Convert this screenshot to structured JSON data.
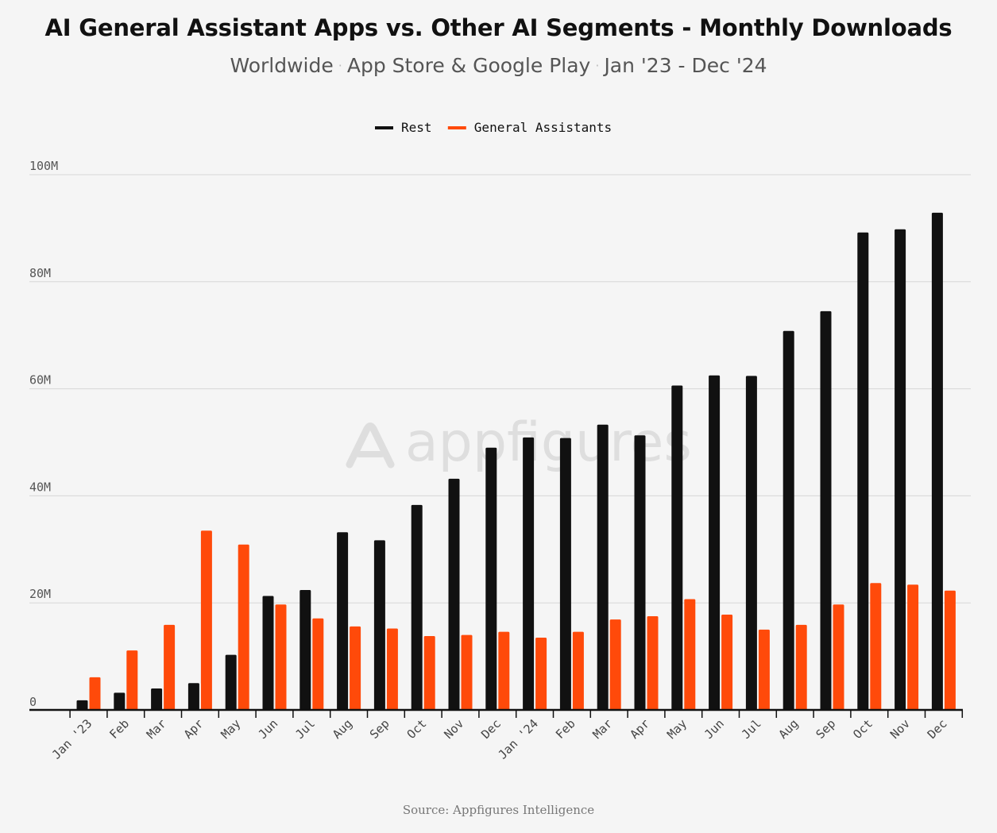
{
  "header": {
    "title": "AI General Assistant Apps vs. Other AI Segments - Monthly Downloads",
    "subtitle_parts": [
      "Worldwide",
      "App Store & Google Play",
      "Jan '23 - Dec '24"
    ],
    "separator": "·"
  },
  "watermark": "appfigures",
  "source": "Source: Appfigures Intelligence",
  "colors": {
    "rest": "#111111",
    "general_assistants": "#ff4a0a",
    "grid": "#d6d6d6",
    "axis": "#111111",
    "background": "#f5f5f5"
  },
  "chart_data": {
    "type": "bar",
    "title": "AI General Assistant Apps vs. Other AI Segments - Monthly Downloads",
    "subtitle": "Worldwide · App Store & Google Play · Jan '23 - Dec '24",
    "xlabel": "",
    "ylabel": "",
    "ylim": [
      0,
      100000000
    ],
    "yticks": [
      {
        "value": 0,
        "label": "0"
      },
      {
        "value": 20000000,
        "label": "20M"
      },
      {
        "value": 40000000,
        "label": "40M"
      },
      {
        "value": 60000000,
        "label": "60M"
      },
      {
        "value": 80000000,
        "label": "80M"
      },
      {
        "value": 100000000,
        "label": "100M"
      }
    ],
    "grid": true,
    "legend_position": "top-center",
    "categories": [
      "Jan '23",
      "Feb",
      "Mar",
      "Apr",
      "May",
      "Jun",
      "Jul",
      "Aug",
      "Sep",
      "Oct",
      "Nov",
      "Dec",
      "Jan '24",
      "Feb",
      "Mar",
      "Apr",
      "May",
      "Jun",
      "Jul",
      "Aug",
      "Sep",
      "Oct",
      "Nov",
      "Dec"
    ],
    "series": [
      {
        "name": "Rest",
        "color": "#111111",
        "values": [
          1800000,
          3200000,
          4000000,
          5000000,
          10300000,
          21300000,
          22400000,
          33200000,
          31700000,
          38300000,
          43200000,
          49000000,
          50900000,
          50800000,
          53300000,
          51300000,
          60600000,
          62500000,
          62400000,
          70800000,
          74500000,
          89200000,
          89800000,
          92900000
        ]
      },
      {
        "name": "General Assistants",
        "color": "#ff4a0a",
        "values": [
          6100000,
          11100000,
          15900000,
          33500000,
          30900000,
          19700000,
          17100000,
          15600000,
          15200000,
          13800000,
          14000000,
          14600000,
          13500000,
          14600000,
          16900000,
          17500000,
          20700000,
          17800000,
          15000000,
          15900000,
          19700000,
          23700000,
          23400000,
          22300000
        ]
      }
    ]
  }
}
